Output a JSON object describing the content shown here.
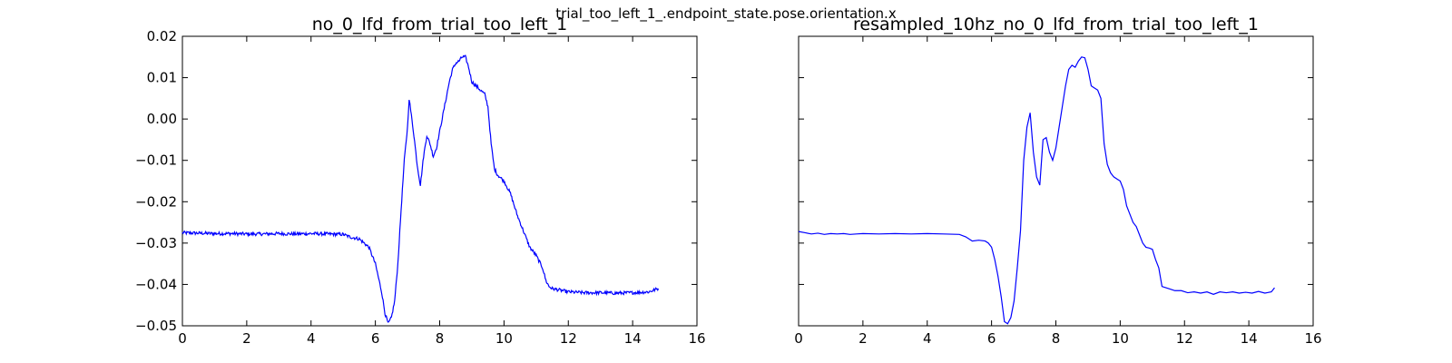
{
  "figure": {
    "suptitle": "trial_too_left_1_.endpoint_state.pose.orientation.x"
  },
  "chart_data": [
    {
      "type": "line",
      "title": "no_0_lfd_from_trial_too_left_1",
      "xlabel": "",
      "ylabel": "",
      "xlim": [
        0,
        16
      ],
      "ylim": [
        -0.05,
        0.02
      ],
      "xticks": [
        0,
        2,
        4,
        6,
        8,
        10,
        12,
        14,
        16
      ],
      "yticks": [
        -0.05,
        -0.04,
        -0.03,
        -0.02,
        -0.01,
        0.0,
        0.01,
        0.02
      ],
      "ytick_labels": [
        "−0.05",
        "−0.04",
        "−0.03",
        "−0.02",
        "−0.01",
        "0.00",
        "0.01",
        "0.02"
      ],
      "show_ytick_labels": true,
      "grid": false,
      "color": "#0000ff",
      "noisy": true,
      "x": [
        0,
        0.5,
        1,
        1.5,
        2,
        2.5,
        3,
        3.5,
        4,
        4.5,
        5,
        5.2,
        5.5,
        5.8,
        6.0,
        6.2,
        6.3,
        6.4,
        6.5,
        6.6,
        6.7,
        6.8,
        6.9,
        7.0,
        7.05,
        7.1,
        7.2,
        7.3,
        7.4,
        7.5,
        7.6,
        7.7,
        7.8,
        7.9,
        8.0,
        8.1,
        8.2,
        8.3,
        8.4,
        8.5,
        8.6,
        8.7,
        8.8,
        8.9,
        9.0,
        9.2,
        9.4,
        9.5,
        9.6,
        9.7,
        9.8,
        10.0,
        10.2,
        10.4,
        10.6,
        10.8,
        11.0,
        11.2,
        11.3,
        11.4,
        11.5,
        12,
        12.5,
        13,
        13.5,
        14,
        14.5,
        14.8
      ],
      "y": [
        -0.0275,
        -0.0276,
        -0.0277,
        -0.0277,
        -0.0278,
        -0.0278,
        -0.0277,
        -0.0278,
        -0.0277,
        -0.0278,
        -0.0279,
        -0.0285,
        -0.029,
        -0.031,
        -0.035,
        -0.042,
        -0.047,
        -0.0495,
        -0.048,
        -0.044,
        -0.035,
        -0.022,
        -0.01,
        -0.002,
        0.005,
        0.002,
        -0.004,
        -0.011,
        -0.016,
        -0.009,
        -0.004,
        -0.006,
        -0.009,
        -0.007,
        -0.003,
        0.001,
        0.005,
        0.009,
        0.012,
        0.0135,
        0.014,
        0.015,
        0.015,
        0.0125,
        0.009,
        0.0075,
        0.006,
        0.003,
        -0.006,
        -0.012,
        -0.0135,
        -0.015,
        -0.018,
        -0.023,
        -0.027,
        -0.031,
        -0.033,
        -0.036,
        -0.039,
        -0.0405,
        -0.041,
        -0.0418,
        -0.042,
        -0.042,
        -0.0421,
        -0.042,
        -0.0418,
        -0.041
      ]
    },
    {
      "type": "line",
      "title": "resampled_10hz_no_0_lfd_from_trial_too_left_1",
      "xlabel": "",
      "ylabel": "",
      "xlim": [
        0,
        16
      ],
      "ylim": [
        -0.05,
        0.02
      ],
      "xticks": [
        0,
        2,
        4,
        6,
        8,
        10,
        12,
        14,
        16
      ],
      "yticks": [
        -0.05,
        -0.04,
        -0.03,
        -0.02,
        -0.01,
        0.0,
        0.01,
        0.02
      ],
      "show_ytick_labels": false,
      "grid": false,
      "color": "#0000ff",
      "noisy": false,
      "x": [
        0,
        0.2,
        0.4,
        0.6,
        0.8,
        1.0,
        1.2,
        1.4,
        1.6,
        1.8,
        2.0,
        2.5,
        3.0,
        3.5,
        4.0,
        4.5,
        5.0,
        5.2,
        5.4,
        5.6,
        5.8,
        5.9,
        6.0,
        6.1,
        6.2,
        6.3,
        6.4,
        6.5,
        6.6,
        6.7,
        6.8,
        6.9,
        7.0,
        7.1,
        7.2,
        7.3,
        7.4,
        7.5,
        7.6,
        7.7,
        7.8,
        7.9,
        8.0,
        8.1,
        8.2,
        8.3,
        8.4,
        8.5,
        8.6,
        8.7,
        8.8,
        8.9,
        9.0,
        9.1,
        9.2,
        9.3,
        9.4,
        9.5,
        9.6,
        9.7,
        9.8,
        9.9,
        10.0,
        10.1,
        10.2,
        10.3,
        10.4,
        10.5,
        10.6,
        10.7,
        10.8,
        10.9,
        11.0,
        11.1,
        11.2,
        11.3,
        11.5,
        11.7,
        11.9,
        12.1,
        12.3,
        12.5,
        12.7,
        12.9,
        13.1,
        13.3,
        13.5,
        13.7,
        13.9,
        14.1,
        14.3,
        14.5,
        14.7,
        14.8
      ],
      "y": [
        -0.0272,
        -0.0275,
        -0.0278,
        -0.0276,
        -0.0279,
        -0.0277,
        -0.0278,
        -0.0277,
        -0.0279,
        -0.0278,
        -0.0277,
        -0.0278,
        -0.0277,
        -0.0278,
        -0.0277,
        -0.0278,
        -0.0279,
        -0.0285,
        -0.0295,
        -0.0293,
        -0.0295,
        -0.03,
        -0.031,
        -0.034,
        -0.038,
        -0.043,
        -0.049,
        -0.0495,
        -0.048,
        -0.044,
        -0.036,
        -0.027,
        -0.01,
        -0.002,
        0.0015,
        -0.008,
        -0.014,
        -0.016,
        -0.005,
        -0.0045,
        -0.008,
        -0.01,
        -0.007,
        -0.002,
        0.003,
        0.008,
        0.012,
        0.013,
        0.0125,
        0.014,
        0.015,
        0.0148,
        0.012,
        0.008,
        0.0075,
        0.007,
        0.005,
        -0.006,
        -0.011,
        -0.013,
        -0.014,
        -0.0145,
        -0.015,
        -0.017,
        -0.021,
        -0.023,
        -0.025,
        -0.026,
        -0.028,
        -0.03,
        -0.031,
        -0.0312,
        -0.0315,
        -0.034,
        -0.036,
        -0.0405,
        -0.041,
        -0.0415,
        -0.0415,
        -0.042,
        -0.0418,
        -0.0421,
        -0.0418,
        -0.0424,
        -0.0418,
        -0.042,
        -0.0418,
        -0.0421,
        -0.0419,
        -0.0421,
        -0.0417,
        -0.0421,
        -0.0418,
        -0.0408
      ]
    }
  ]
}
